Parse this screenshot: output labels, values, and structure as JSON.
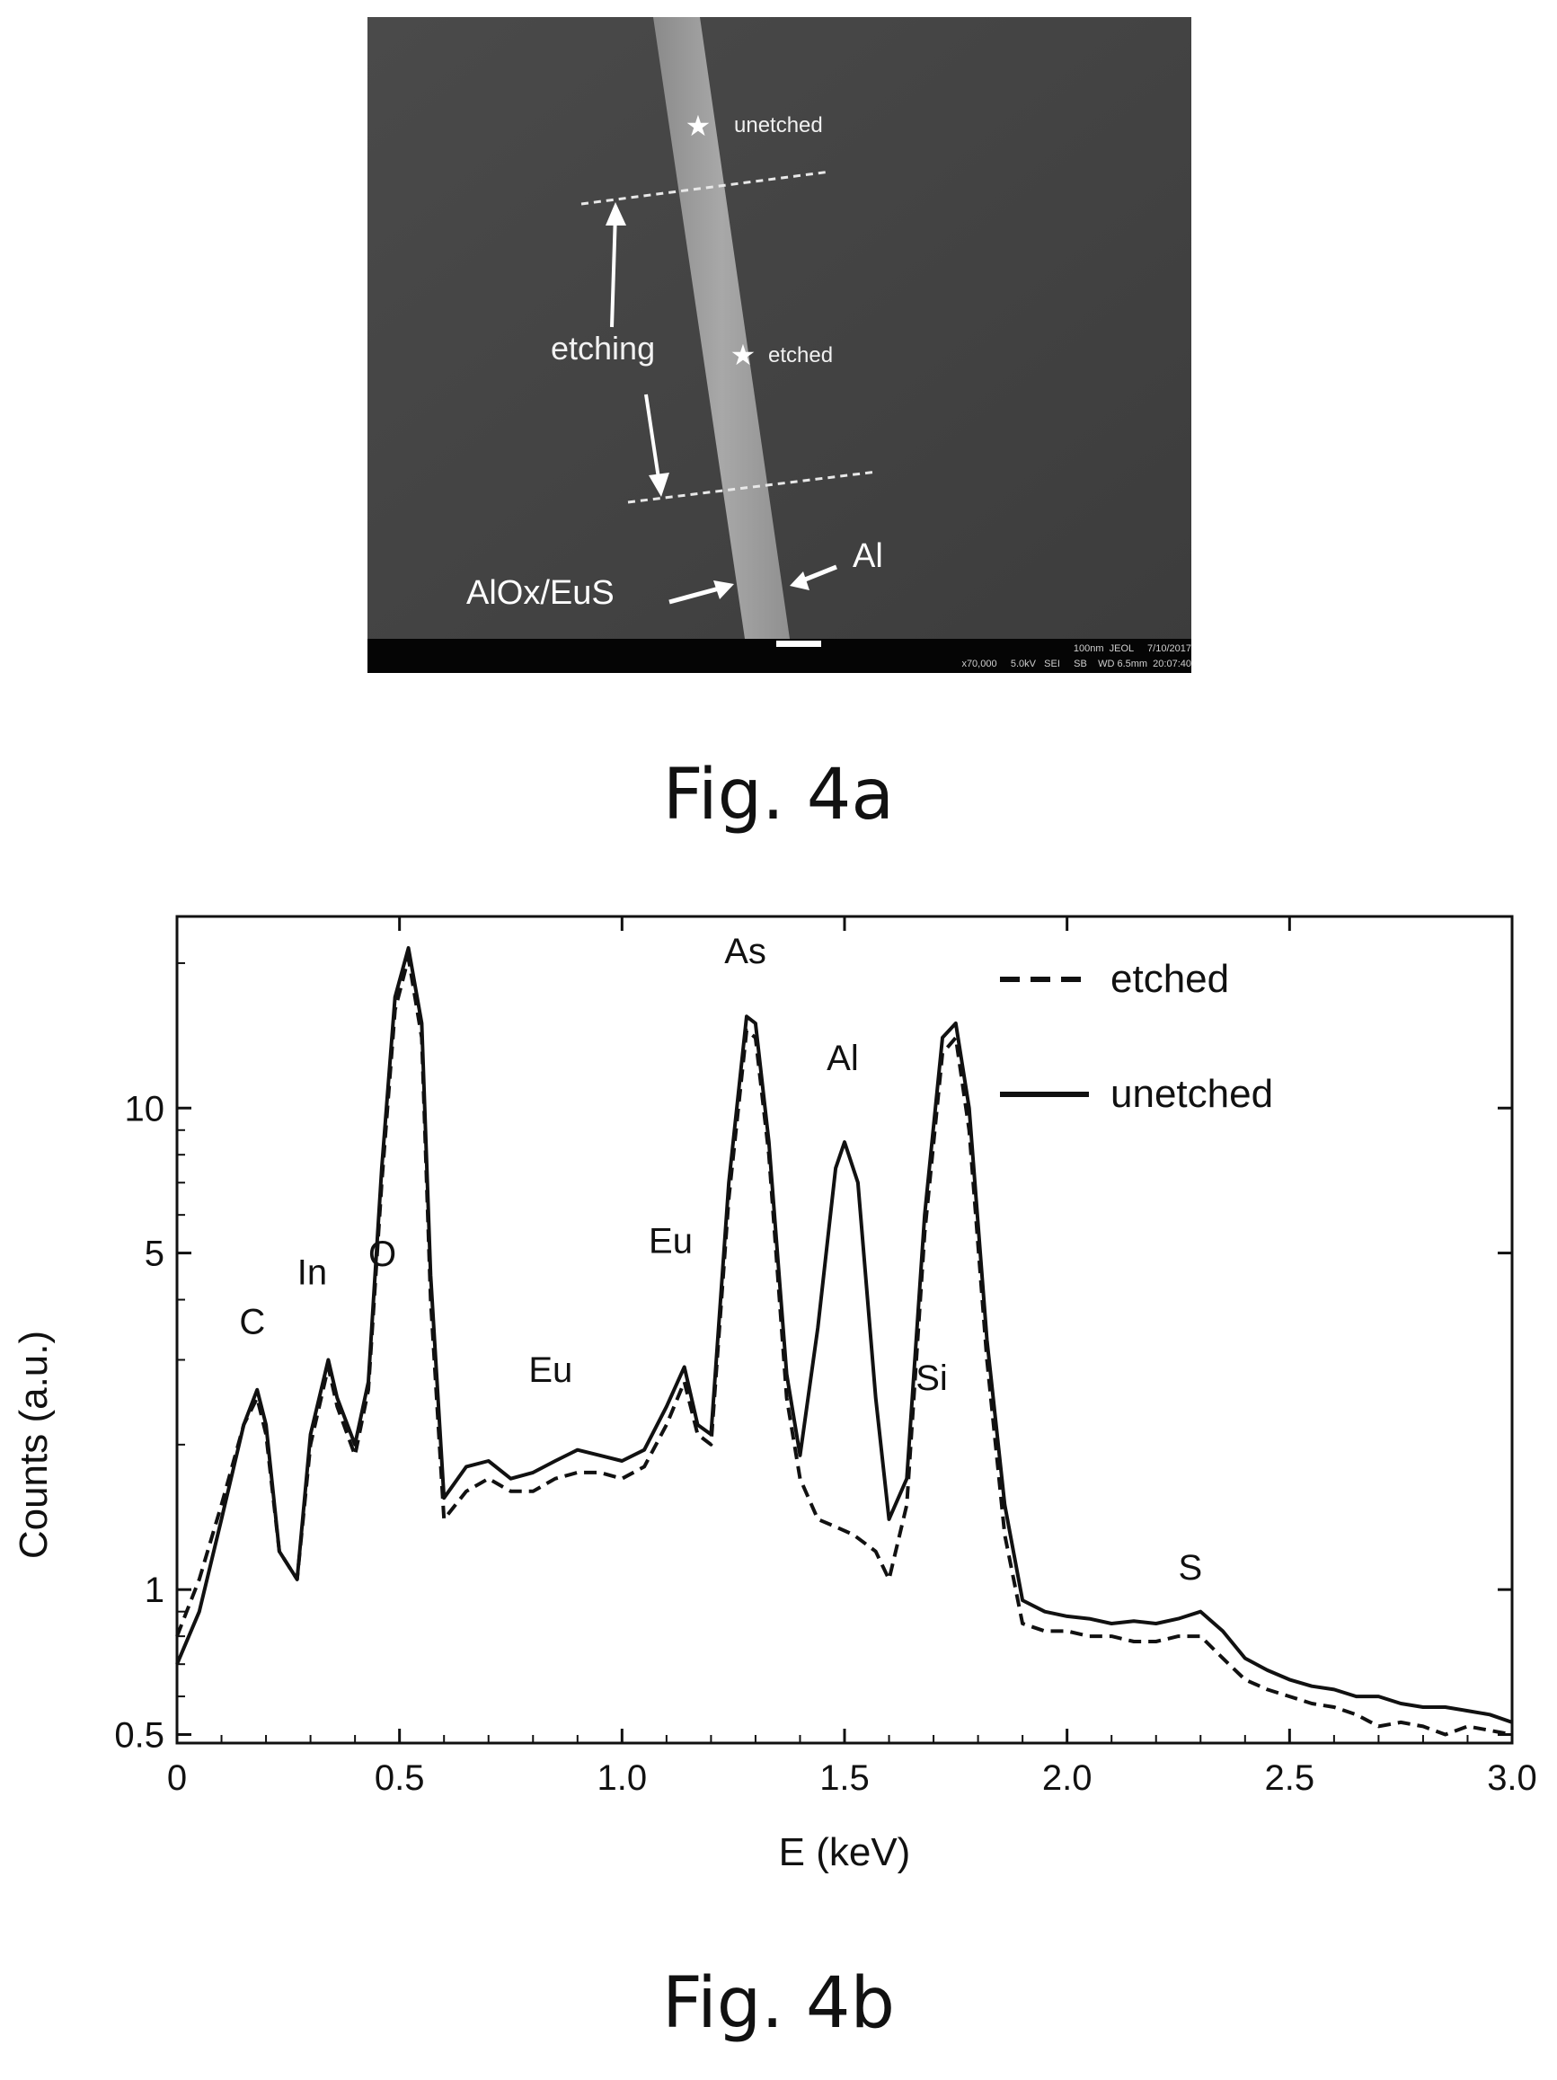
{
  "figure_a": {
    "caption": "Fig. 4a",
    "labels": {
      "unetched": "unetched",
      "etched": "etched",
      "etching": "etching",
      "aiox_eus": "AlOx/EuS",
      "al": "Al"
    },
    "scale_bar_row1": "100nm  JEOL     7/10/2017",
    "scale_bar_row2": "x70,000     5.0kV   SEI     SB    WD 6.5mm  20:07:40"
  },
  "figure_b": {
    "caption": "Fig. 4b"
  },
  "chart_data": {
    "type": "line",
    "xlabel": "E (keV)",
    "ylabel": "Counts (a.u.)",
    "xlim": [
      0,
      3.0
    ],
    "ylim": [
      0.48,
      25
    ],
    "yscale": "log",
    "xticks": [
      0,
      0.5,
      1.0,
      1.5,
      2.0,
      2.5,
      3.0
    ],
    "xtick_labels": [
      "0",
      "0.5",
      "1.0",
      "1.5",
      "2.0",
      "2.5",
      "3.0"
    ],
    "yticks": [
      0.5,
      1,
      5,
      10
    ],
    "ytick_labels": [
      "0.5",
      "1",
      "5",
      "10"
    ],
    "legend_position": "top-right",
    "series": [
      {
        "name": "etched",
        "style": "dashed",
        "color": "#111111",
        "x": [
          0,
          0.05,
          0.1,
          0.15,
          0.18,
          0.2,
          0.23,
          0.27,
          0.3,
          0.34,
          0.36,
          0.4,
          0.43,
          0.46,
          0.49,
          0.52,
          0.55,
          0.57,
          0.6,
          0.65,
          0.7,
          0.75,
          0.8,
          0.85,
          0.9,
          0.95,
          1.0,
          1.05,
          1.1,
          1.14,
          1.17,
          1.2,
          1.24,
          1.28,
          1.3,
          1.33,
          1.37,
          1.4,
          1.44,
          1.48,
          1.52,
          1.57,
          1.6,
          1.64,
          1.68,
          1.72,
          1.75,
          1.78,
          1.82,
          1.86,
          1.9,
          1.95,
          2.0,
          2.05,
          2.1,
          2.15,
          2.2,
          2.25,
          2.3,
          2.35,
          2.4,
          2.45,
          2.5,
          2.55,
          2.6,
          2.65,
          2.7,
          2.75,
          2.8,
          2.85,
          2.9,
          2.95,
          3.0
        ],
        "y": [
          0.8,
          1.05,
          1.5,
          2.2,
          2.5,
          2.1,
          1.2,
          1.05,
          2.0,
          2.9,
          2.4,
          1.9,
          2.6,
          7.0,
          16.0,
          20.5,
          14.0,
          4.0,
          1.4,
          1.6,
          1.7,
          1.6,
          1.6,
          1.7,
          1.75,
          1.75,
          1.7,
          1.8,
          2.2,
          2.7,
          2.1,
          2.0,
          6.5,
          14.5,
          14.0,
          8.0,
          2.5,
          1.7,
          1.4,
          1.35,
          1.3,
          1.2,
          1.05,
          1.5,
          5.5,
          13.0,
          14.0,
          9.0,
          3.0,
          1.3,
          0.85,
          0.82,
          0.82,
          0.8,
          0.8,
          0.78,
          0.78,
          0.8,
          0.8,
          0.72,
          0.65,
          0.62,
          0.6,
          0.58,
          0.57,
          0.55,
          0.52,
          0.53,
          0.52,
          0.5,
          0.52,
          0.51,
          0.5
        ]
      },
      {
        "name": "unetched",
        "style": "solid",
        "color": "#111111",
        "x": [
          0,
          0.05,
          0.1,
          0.15,
          0.18,
          0.2,
          0.23,
          0.27,
          0.3,
          0.34,
          0.36,
          0.4,
          0.43,
          0.46,
          0.49,
          0.52,
          0.55,
          0.57,
          0.6,
          0.65,
          0.7,
          0.75,
          0.8,
          0.85,
          0.9,
          0.95,
          1.0,
          1.05,
          1.1,
          1.14,
          1.17,
          1.2,
          1.24,
          1.28,
          1.3,
          1.33,
          1.37,
          1.4,
          1.44,
          1.48,
          1.5,
          1.53,
          1.57,
          1.6,
          1.64,
          1.68,
          1.72,
          1.75,
          1.78,
          1.82,
          1.86,
          1.9,
          1.95,
          2.0,
          2.05,
          2.1,
          2.15,
          2.2,
          2.25,
          2.3,
          2.35,
          2.4,
          2.45,
          2.5,
          2.55,
          2.6,
          2.65,
          2.7,
          2.75,
          2.8,
          2.85,
          2.9,
          2.95,
          3.0
        ],
        "y": [
          0.7,
          0.9,
          1.4,
          2.2,
          2.6,
          2.2,
          1.2,
          1.05,
          2.1,
          3.0,
          2.5,
          2.0,
          2.7,
          7.5,
          17.0,
          21.5,
          15.0,
          4.5,
          1.55,
          1.8,
          1.85,
          1.7,
          1.75,
          1.85,
          1.95,
          1.9,
          1.85,
          1.95,
          2.4,
          2.9,
          2.2,
          2.1,
          7.0,
          15.5,
          15.0,
          8.5,
          2.8,
          1.9,
          3.5,
          7.5,
          8.5,
          7.0,
          2.5,
          1.4,
          1.7,
          6.0,
          14.0,
          15.0,
          10.0,
          3.3,
          1.5,
          0.95,
          0.9,
          0.88,
          0.87,
          0.85,
          0.86,
          0.85,
          0.87,
          0.9,
          0.82,
          0.72,
          0.68,
          0.65,
          0.63,
          0.62,
          0.6,
          0.6,
          0.58,
          0.57,
          0.57,
          0.56,
          0.55,
          0.53
        ]
      }
    ],
    "annotations": [
      {
        "text": "C",
        "x": 0.14,
        "y": 3.4
      },
      {
        "text": "In",
        "x": 0.27,
        "y": 4.3
      },
      {
        "text": "O",
        "x": 0.43,
        "y": 4.7
      },
      {
        "text": "Eu",
        "x": 0.79,
        "y": 2.7
      },
      {
        "text": "Eu",
        "x": 1.06,
        "y": 5.0
      },
      {
        "text": "As",
        "x": 1.23,
        "y": 20.0
      },
      {
        "text": "Al",
        "x": 1.46,
        "y": 12.0
      },
      {
        "text": "Si",
        "x": 1.66,
        "y": 2.6
      },
      {
        "text": "S",
        "x": 2.25,
        "y": 1.05
      }
    ]
  }
}
